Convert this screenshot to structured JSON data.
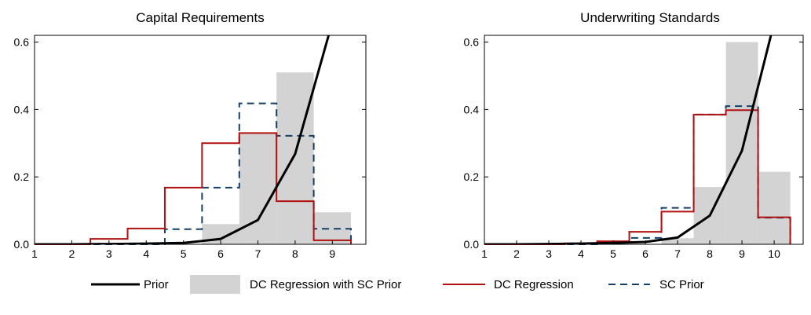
{
  "colors": {
    "prior": "#000000",
    "dc_regression_with_sc_prior": "#d3d3d3",
    "dc_regression": "#b01010",
    "sc_prior": "#163f66"
  },
  "legend": {
    "placement": "bottom",
    "items": [
      {
        "label": "Prior",
        "style": "solid-thick-line",
        "color_key": "prior"
      },
      {
        "label": "DC Regression with SC Prior",
        "style": "filled-bar",
        "color_key": "dc_regression_with_sc_prior"
      },
      {
        "label": "DC Regression",
        "style": "solid-line",
        "color_key": "dc_regression"
      },
      {
        "label": "SC Prior",
        "style": "dashed-line",
        "color_key": "sc_prior"
      }
    ]
  },
  "chart_data": [
    {
      "type": "bar",
      "title": "Capital Requirements",
      "xlabel": "",
      "ylabel": "",
      "xlim": [
        1,
        9.9
      ],
      "ylim": [
        0,
        0.62
      ],
      "xticks": [
        1,
        2,
        3,
        4,
        5,
        6,
        7,
        8,
        9
      ],
      "yticks": [
        0.0,
        0.2,
        0.4,
        0.6
      ],
      "ytick_labels": [
        "0.0",
        "0.2",
        "0.4",
        "0.6"
      ],
      "grid": false,
      "series": [
        {
          "name": "DC Regression with SC Prior",
          "kind": "bars",
          "x": [
            1,
            2,
            3,
            4,
            5,
            6,
            7,
            8,
            9
          ],
          "values": [
            0.0,
            0.0,
            0.0,
            0.0,
            0.0,
            0.06,
            0.33,
            0.51,
            0.095
          ]
        },
        {
          "name": "DC Regression",
          "kind": "step",
          "x": [
            1,
            2,
            3,
            4,
            5,
            6,
            7,
            8,
            9
          ],
          "values": [
            0.0,
            0.0,
            0.016,
            0.047,
            0.168,
            0.3,
            0.33,
            0.128,
            0.012
          ]
        },
        {
          "name": "SC Prior",
          "kind": "step",
          "x": [
            1,
            2,
            3,
            4,
            5,
            6,
            7,
            8,
            9
          ],
          "values": [
            0.0,
            0.0,
            0.0,
            0.0,
            0.045,
            0.168,
            0.418,
            0.322,
            0.046
          ]
        },
        {
          "name": "Prior",
          "kind": "line",
          "x": [
            1,
            2,
            3,
            4,
            5,
            6,
            7,
            8,
            8.9
          ],
          "values": [
            0.0,
            0.0,
            0.001,
            0.002,
            0.004,
            0.016,
            0.072,
            0.268,
            0.62
          ]
        }
      ]
    },
    {
      "type": "bar",
      "title": "Underwriting Standards",
      "xlabel": "",
      "ylabel": "",
      "xlim": [
        1,
        10.9
      ],
      "ylim": [
        0,
        0.62
      ],
      "xticks": [
        1,
        2,
        3,
        4,
        5,
        6,
        7,
        8,
        9,
        10
      ],
      "yticks": [
        0.0,
        0.2,
        0.4,
        0.6
      ],
      "ytick_labels": [
        "0.0",
        "0.2",
        "0.4",
        "0.6"
      ],
      "grid": false,
      "series": [
        {
          "name": "DC Regression with SC Prior",
          "kind": "bars",
          "x": [
            1,
            2,
            3,
            4,
            5,
            6,
            7,
            8,
            9,
            10
          ],
          "values": [
            0.0,
            0.0,
            0.0,
            0.0,
            0.0,
            0.0,
            0.018,
            0.17,
            0.6,
            0.215
          ]
        },
        {
          "name": "DC Regression",
          "kind": "step",
          "x": [
            1,
            2,
            3,
            4,
            5,
            6,
            7,
            8,
            9,
            10
          ],
          "values": [
            0.0,
            0.0,
            0.0,
            0.003,
            0.009,
            0.037,
            0.097,
            0.385,
            0.398,
            0.08
          ]
        },
        {
          "name": "SC Prior",
          "kind": "step",
          "x": [
            1,
            2,
            3,
            4,
            5,
            6,
            7,
            8,
            9,
            10
          ],
          "values": [
            0.0,
            0.0,
            0.0,
            0.0,
            0.005,
            0.019,
            0.108,
            0.385,
            0.41,
            0.079
          ]
        },
        {
          "name": "Prior",
          "kind": "line",
          "x": [
            1,
            2,
            3,
            4,
            5,
            6,
            7,
            8,
            9,
            9.9
          ],
          "values": [
            0.0,
            0.0,
            0.001,
            0.002,
            0.004,
            0.007,
            0.02,
            0.085,
            0.278,
            0.62
          ]
        }
      ]
    }
  ]
}
